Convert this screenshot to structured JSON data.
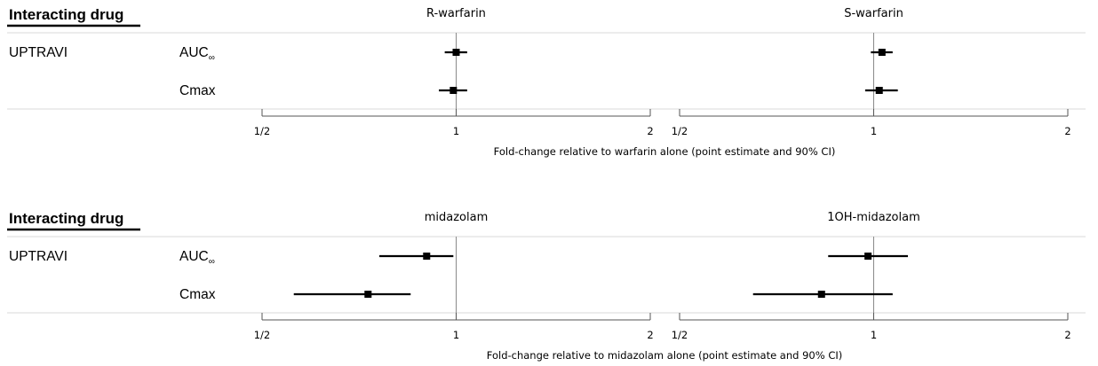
{
  "chart_data": [
    {
      "type": "forest",
      "header": "Interacting drug",
      "drug": "UPTRAVI",
      "rows": [
        {
          "param": "AUC",
          "sub": "∞"
        },
        {
          "param": "Cmax",
          "sub": ""
        }
      ],
      "x_scale": "log2",
      "xlim": [
        0.5,
        2
      ],
      "reference_line": 1,
      "xticks": [
        0.5,
        1,
        2
      ],
      "xtick_labels": [
        "1/2",
        "1",
        "2"
      ],
      "xlabel": "Fold-change relative to warfarin alone (point estimate and 90% CI)",
      "panels": [
        {
          "title": "R-warfarin",
          "estimates": [
            {
              "point": 1.0,
              "lower": 0.96,
              "upper": 1.04
            },
            {
              "point": 0.99,
              "lower": 0.94,
              "upper": 1.04
            }
          ]
        },
        {
          "title": "S-warfarin",
          "estimates": [
            {
              "point": 1.03,
              "lower": 0.99,
              "upper": 1.07
            },
            {
              "point": 1.02,
              "lower": 0.97,
              "upper": 1.09
            }
          ]
        }
      ]
    },
    {
      "type": "forest",
      "header": "Interacting drug",
      "drug": "UPTRAVI",
      "rows": [
        {
          "param": "AUC",
          "sub": "∞"
        },
        {
          "param": "Cmax",
          "sub": ""
        }
      ],
      "x_scale": "log2",
      "xlim": [
        0.5,
        2
      ],
      "reference_line": 1,
      "xticks": [
        0.5,
        1,
        2
      ],
      "xtick_labels": [
        "1/2",
        "1",
        "2"
      ],
      "xlabel": "Fold-change relative to midazolam alone (point estimate and 90% CI)",
      "panels": [
        {
          "title": "midazolam",
          "estimates": [
            {
              "point": 0.9,
              "lower": 0.76,
              "upper": 0.99
            },
            {
              "point": 0.73,
              "lower": 0.56,
              "upper": 0.85
            }
          ]
        },
        {
          "title": "1OH-midazolam",
          "estimates": [
            {
              "point": 0.98,
              "lower": 0.85,
              "upper": 1.13
            },
            {
              "point": 0.83,
              "lower": 0.65,
              "upper": 1.07
            }
          ]
        }
      ]
    }
  ]
}
